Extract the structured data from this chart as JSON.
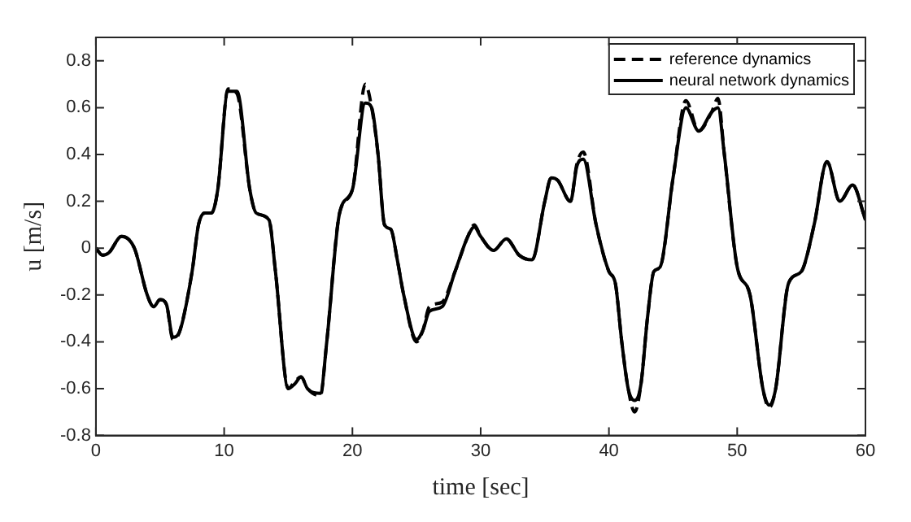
{
  "chart_data": {
    "type": "line",
    "xlabel": "time [sec]",
    "ylabel": "u [m/s]",
    "xlim": [
      0,
      60
    ],
    "ylim": [
      -0.8,
      0.9
    ],
    "xticks": [
      0,
      10,
      20,
      30,
      40,
      50,
      60
    ],
    "yticks": [
      -0.8,
      -0.6,
      -0.4,
      -0.2,
      0,
      0.2,
      0.4,
      0.6,
      0.8
    ],
    "grid": false,
    "legend": "top right",
    "marker": "none",
    "x": [
      0,
      0.5,
      1,
      2,
      3,
      4,
      4.5,
      5,
      5.5,
      6,
      6.5,
      7.5,
      8,
      8.5,
      9,
      9.5,
      10.3,
      11,
      12,
      12.5,
      13.5,
      14,
      15,
      15.5,
      16,
      16.5,
      17.5,
      18,
      19,
      20,
      21,
      21.5,
      22,
      22.5,
      23,
      23.5,
      24,
      25,
      25.5,
      26,
      27,
      28,
      29,
      29.5,
      30,
      31,
      32,
      33,
      34,
      35,
      35.5,
      36,
      37,
      37.5,
      38,
      39,
      40,
      40.5,
      41,
      41.5,
      42,
      42.5,
      43,
      43.5,
      44,
      45,
      46,
      47,
      48,
      48.5,
      49,
      50,
      51,
      52,
      52.5,
      53,
      54,
      55,
      56,
      57,
      58,
      59,
      60
    ],
    "series": [
      {
        "name": "reference dynamics",
        "color": "#000000",
        "line_style": "dashed",
        "values": [
          0,
          -0.03,
          -0.02,
          0.05,
          0,
          -0.2,
          -0.25,
          -0.22,
          -0.24,
          -0.39,
          -0.36,
          -0.1,
          0.1,
          0.15,
          0.15,
          0.25,
          0.68,
          0.66,
          0.25,
          0.15,
          0.12,
          -0.1,
          -0.6,
          -0.57,
          -0.55,
          -0.6,
          -0.63,
          -0.4,
          0.15,
          0.25,
          0.7,
          0.6,
          0.4,
          0.1,
          0.08,
          -0.05,
          -0.2,
          -0.4,
          -0.35,
          -0.25,
          -0.23,
          -0.1,
          0.05,
          0.1,
          0.05,
          -0.01,
          0.04,
          -0.03,
          -0.05,
          0.2,
          0.3,
          0.29,
          0.2,
          0.36,
          0.41,
          0.1,
          -0.1,
          -0.15,
          -0.4,
          -0.6,
          -0.7,
          -0.58,
          -0.3,
          -0.1,
          -0.08,
          0.3,
          0.63,
          0.5,
          0.58,
          0.64,
          0.4,
          -0.08,
          -0.2,
          -0.6,
          -0.68,
          -0.6,
          -0.15,
          -0.1,
          0.1,
          0.37,
          0.2,
          0.27,
          0.12
        ]
      },
      {
        "name": "neural network dynamics",
        "color": "#000000",
        "line_style": "solid",
        "values": [
          0,
          -0.03,
          -0.02,
          0.05,
          0,
          -0.2,
          -0.25,
          -0.22,
          -0.24,
          -0.38,
          -0.36,
          -0.1,
          0.1,
          0.15,
          0.15,
          0.25,
          0.67,
          0.67,
          0.25,
          0.15,
          0.12,
          -0.1,
          -0.6,
          -0.58,
          -0.55,
          -0.6,
          -0.62,
          -0.4,
          0.15,
          0.25,
          0.62,
          0.6,
          0.4,
          0.1,
          0.08,
          -0.05,
          -0.2,
          -0.39,
          -0.35,
          -0.27,
          -0.25,
          -0.1,
          0.05,
          0.09,
          0.05,
          -0.01,
          0.04,
          -0.03,
          -0.05,
          0.2,
          0.3,
          0.29,
          0.2,
          0.35,
          0.38,
          0.1,
          -0.1,
          -0.15,
          -0.4,
          -0.6,
          -0.65,
          -0.58,
          -0.3,
          -0.1,
          -0.08,
          0.3,
          0.6,
          0.5,
          0.58,
          0.6,
          0.4,
          -0.08,
          -0.2,
          -0.6,
          -0.67,
          -0.6,
          -0.15,
          -0.1,
          0.1,
          0.37,
          0.2,
          0.27,
          0.12
        ]
      }
    ]
  }
}
